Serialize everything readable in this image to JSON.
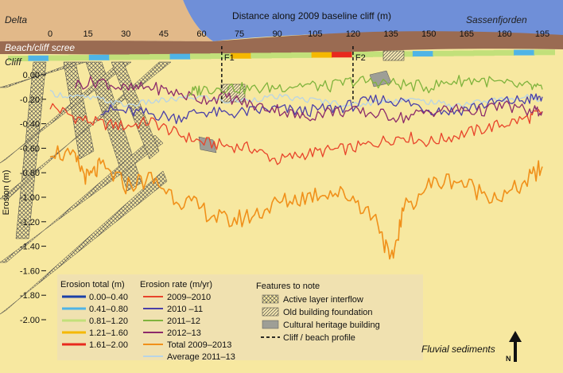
{
  "chart_data": {
    "type": "line",
    "title": "Distance along 2009 baseline cliff (m)",
    "xlabel": "Distance along 2009 baseline cliff (m)",
    "ylabel": "Erosion (m)",
    "x_ticks": [
      0,
      15,
      30,
      45,
      60,
      75,
      90,
      105,
      120,
      135,
      150,
      165,
      180,
      195
    ],
    "y_ticks": [
      "0.00",
      "-0.20",
      "-0.40",
      "-0.60",
      "-0.80",
      "-1.00",
      "-1.20",
      "-1.40",
      "-1.60",
      "-1.80",
      "-2.00"
    ],
    "xlim": [
      0,
      195
    ],
    "ylim": [
      -2.0,
      0.0
    ],
    "map_labels": {
      "delta": "Delta",
      "fjord": "Sassenfjorden",
      "beach": "Beach/cliff scree",
      "cliff": "Cliff",
      "fluvial": "Fluvial sediments",
      "north": "N"
    },
    "profile_labels": [
      "F1",
      "F2"
    ],
    "profile_x": [
      68,
      120
    ],
    "series": [
      {
        "name": "2009–2010",
        "color": "#e8432a",
        "x": [
          0,
          10,
          20,
          30,
          40,
          50,
          60,
          70,
          80,
          90,
          100,
          110,
          120,
          130,
          140,
          150,
          160,
          170,
          180,
          190,
          195
        ],
        "values": [
          -0.25,
          -0.35,
          -0.4,
          -0.42,
          -0.38,
          -0.48,
          -0.55,
          -0.58,
          -0.6,
          -0.7,
          -0.65,
          -0.62,
          -0.6,
          -0.55,
          -0.5,
          -0.55,
          -0.5,
          -0.45,
          -0.4,
          -0.35,
          -0.3
        ]
      },
      {
        "name": "2010 –11",
        "color": "#4a3fa8",
        "x": [
          20,
          30,
          40,
          50,
          60,
          70,
          80,
          90,
          100,
          110,
          120,
          130,
          140,
          150,
          160,
          170,
          180,
          190,
          195
        ],
        "values": [
          -0.28,
          -0.3,
          -0.32,
          -0.35,
          -0.3,
          -0.32,
          -0.3,
          -0.28,
          -0.3,
          -0.28,
          -0.25,
          -0.2,
          -0.22,
          -0.28,
          -0.3,
          -0.25,
          -0.22,
          -0.2,
          -0.18
        ]
      },
      {
        "name": "2011–12",
        "color": "#7fb33c",
        "x": [
          55,
          60,
          70,
          80,
          90,
          100,
          110,
          120,
          130,
          140,
          150,
          160,
          170,
          180,
          190,
          195
        ],
        "values": [
          -0.15,
          -0.12,
          -0.1,
          -0.12,
          -0.1,
          -0.08,
          -0.1,
          -0.05,
          -0.06,
          -0.08,
          -0.1,
          -0.05,
          -0.04,
          -0.08,
          -0.1,
          -0.12
        ]
      },
      {
        "name": "2012–13",
        "color": "#8c2a6a",
        "x": [
          10,
          20,
          30,
          40,
          50,
          60,
          70,
          80,
          90,
          100,
          110,
          120,
          130,
          140,
          150,
          160,
          170,
          180,
          190,
          195
        ],
        "values": [
          -0.08,
          -0.05,
          -0.12,
          -0.1,
          -0.15,
          -0.2,
          -0.18,
          -0.25,
          -0.28,
          -0.35,
          -0.3,
          -0.3,
          -0.32,
          -0.35,
          -0.3,
          -0.28,
          -0.3,
          -0.25,
          -0.3,
          -0.3
        ]
      },
      {
        "name": "Total 2009–2013",
        "color": "#f0901a",
        "x": [
          0,
          10,
          15,
          20,
          30,
          40,
          50,
          60,
          70,
          80,
          90,
          100,
          110,
          120,
          130,
          135,
          140,
          150,
          160,
          170,
          180,
          190,
          195
        ],
        "values": [
          -0.6,
          -0.7,
          -0.85,
          -0.75,
          -0.9,
          -0.85,
          -1.0,
          -1.1,
          -1.2,
          -1.15,
          -1.05,
          -1.0,
          -0.95,
          -1.0,
          -1.2,
          -1.55,
          -1.1,
          -0.9,
          -0.85,
          -0.95,
          -1.0,
          -0.85,
          -0.75
        ]
      },
      {
        "name": "Average 2011–13",
        "color": "#b8d4e6",
        "x": [
          0,
          10,
          20,
          30,
          40,
          50,
          60,
          70,
          80,
          90,
          100,
          110,
          120,
          130,
          140,
          150,
          160,
          170,
          180,
          190,
          195
        ],
        "values": [
          -0.15,
          -0.18,
          -0.2,
          -0.25,
          -0.22,
          -0.2,
          -0.18,
          -0.22,
          -0.2,
          -0.18,
          -0.2,
          -0.22,
          -0.25,
          -0.22,
          -0.2,
          -0.22,
          -0.25,
          -0.22,
          -0.2,
          -0.18,
          -0.2
        ]
      }
    ],
    "legend_total": {
      "title": "Erosion total (m)",
      "items": [
        {
          "label": "0.00–0.40",
          "color": "#1a3fa8"
        },
        {
          "label": "0.41–0.80",
          "color": "#4fb4e6"
        },
        {
          "label": "0.81–1.20",
          "color": "#c2e07a"
        },
        {
          "label": "1.21–1.60",
          "color": "#f5b800"
        },
        {
          "label": "1.61–2.00",
          "color": "#e82a1e"
        }
      ]
    },
    "legend_rate_title": "Erosion rate (m/yr)",
    "legend_features": {
      "title": "Features to note",
      "items": [
        {
          "label": "Active layer interflow",
          "style": "crosshatch"
        },
        {
          "label": "Old building foundation",
          "style": "diagonal"
        },
        {
          "label": "Cultural heritage building",
          "style": "gray"
        },
        {
          "label": "Cliff / beach profile",
          "style": "dashed"
        }
      ]
    },
    "colors": {
      "fjord": "#6f8fd8",
      "delta": "#e2b989",
      "beach": "#9a6b52",
      "plot_bg": "#f7e8a0"
    }
  }
}
